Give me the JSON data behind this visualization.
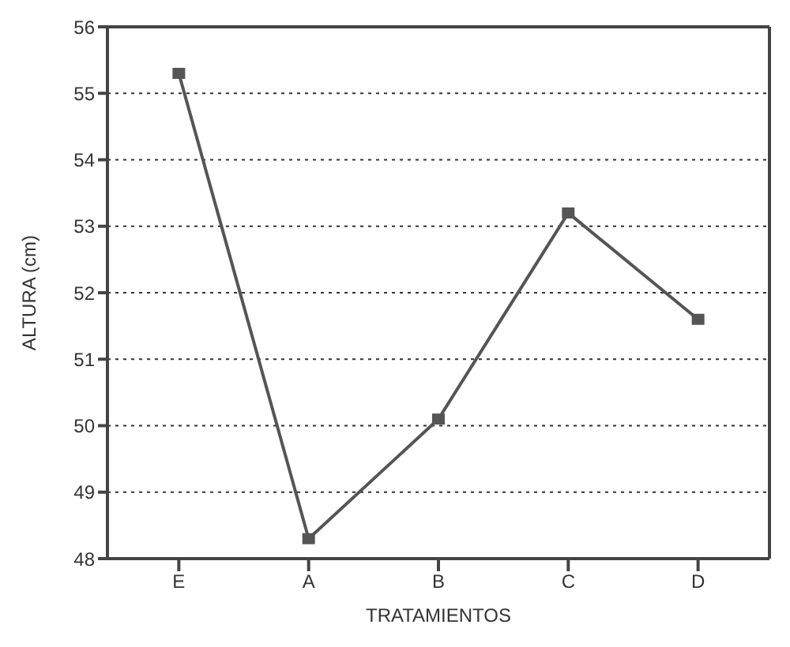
{
  "chart_data": {
    "type": "line",
    "xlabel": "TRATAMIENTOS",
    "ylabel": "ALTURA (cm)",
    "categories": [
      "E",
      "A",
      "B",
      "C",
      "D"
    ],
    "series": [
      {
        "color": "#555555",
        "values": [
          55.3,
          48.3,
          50.1,
          53.2,
          51.6
        ]
      }
    ],
    "ylim": [
      48,
      56
    ],
    "yticks": [
      48,
      49,
      50,
      51,
      52,
      53,
      54,
      55,
      56
    ],
    "grid": "y",
    "marker": "square",
    "line_style": "solid"
  }
}
